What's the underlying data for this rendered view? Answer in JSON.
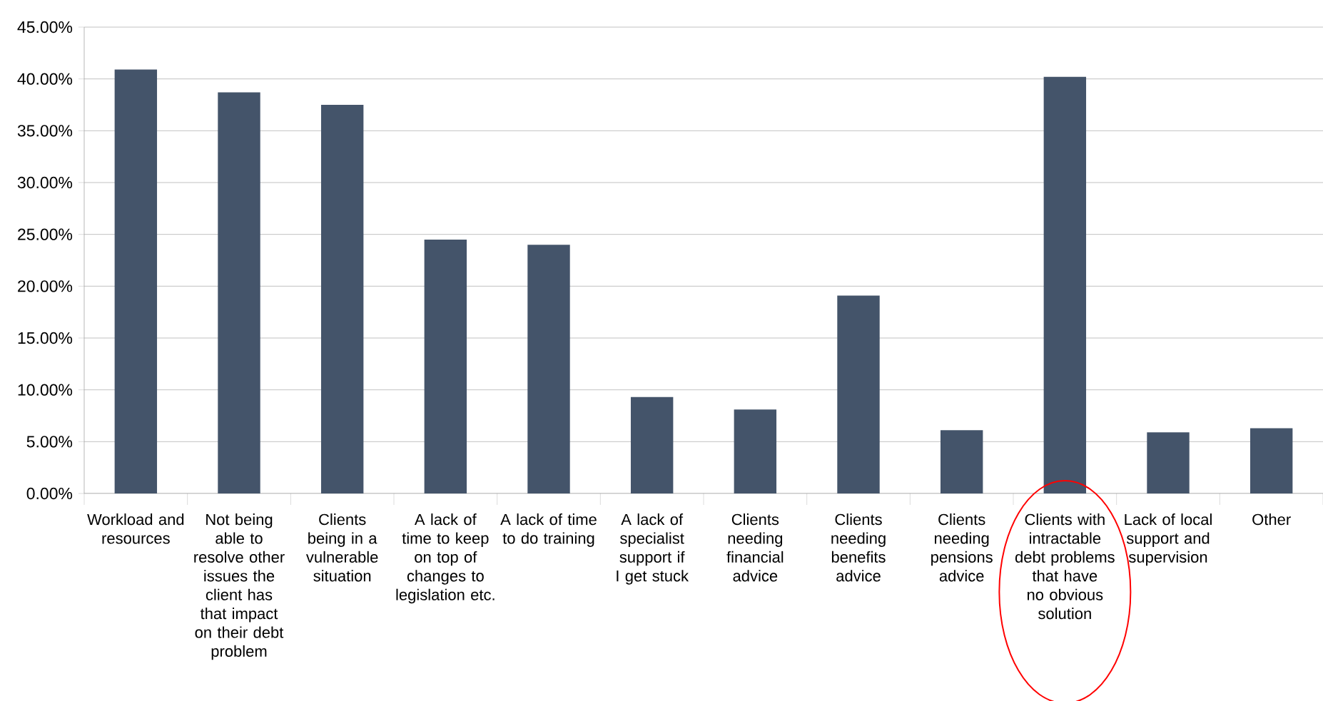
{
  "chart_data": {
    "type": "bar",
    "categories": [
      "Workload and resources",
      "Not being able to resolve other issues the client has that impact on their debt problem",
      "Clients being in a vulnerable situation",
      "A lack of time to keep on top of changes to legislation etc.",
      "A lack of time to do training",
      "A lack of specialist support if I get stuck",
      "Clients needing financial advice",
      "Clients needing benefits advice",
      "Clients needing pensions advice",
      "Clients with intractable debt problems that have  no obvious solution",
      "Lack of local support and supervision",
      "Other"
    ],
    "values": [
      40.9,
      38.7,
      37.5,
      24.5,
      24.0,
      9.3,
      8.1,
      19.1,
      6.1,
      40.2,
      5.9,
      6.3
    ],
    "color": "#44546a",
    "ylim": [
      0,
      45
    ],
    "yticks": [
      {
        "value": 0,
        "label": "0.00%"
      },
      {
        "value": 5,
        "label": "5.00%"
      },
      {
        "value": 10,
        "label": "10.00%"
      },
      {
        "value": 15,
        "label": "15.00%"
      },
      {
        "value": 20,
        "label": "20.00%"
      },
      {
        "value": 25,
        "label": "25.00%"
      },
      {
        "value": 30,
        "label": "30.00%"
      },
      {
        "value": 35,
        "label": "35.00%"
      },
      {
        "value": 40,
        "label": "40.00%"
      },
      {
        "value": 45,
        "label": "45.00%"
      }
    ],
    "grid": "y"
  }
}
